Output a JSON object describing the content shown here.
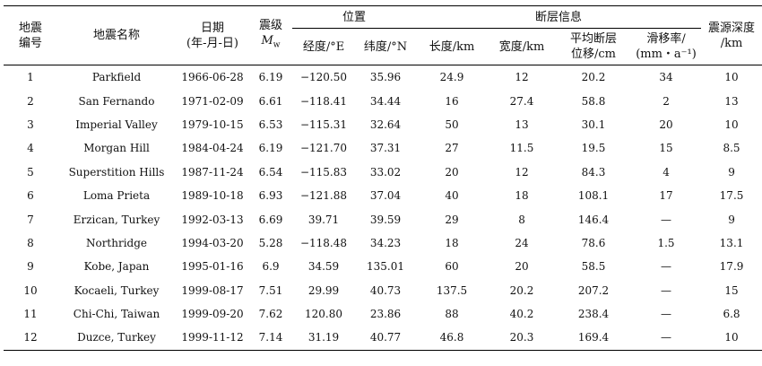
{
  "headers": {
    "no": "地震\n编号",
    "name": "地震名称",
    "date": "日期\n(年-月-日)",
    "mag_line1": "震级",
    "mag_sym": "M",
    "mag_sub": "w",
    "position": "位置",
    "fault_info": "断层信息",
    "depth": "震源深度\n/km",
    "lon": "经度/°E",
    "lat": "纬度/°N",
    "length": "长度/km",
    "width": "宽度/km",
    "disp": "平均断层\n位移/cm",
    "slip_line1": "滑移率/",
    "slip_line2": "(mm・a⁻¹)"
  },
  "rows": [
    {
      "no": "1",
      "name": "Parkfield",
      "date": "1966-06-28",
      "mag": "6.19",
      "lon": "−120.50",
      "lat": "35.96",
      "length": "24.9",
      "width": "12",
      "disp": "20.2",
      "slip": "34",
      "depth": "10"
    },
    {
      "no": "2",
      "name": "San Fernando",
      "date": "1971-02-09",
      "mag": "6.61",
      "lon": "−118.41",
      "lat": "34.44",
      "length": "16",
      "width": "27.4",
      "disp": "58.8",
      "slip": "2",
      "depth": "13"
    },
    {
      "no": "3",
      "name": "Imperial Valley",
      "date": "1979-10-15",
      "mag": "6.53",
      "lon": "−115.31",
      "lat": "32.64",
      "length": "50",
      "width": "13",
      "disp": "30.1",
      "slip": "20",
      "depth": "10"
    },
    {
      "no": "4",
      "name": "Morgan Hill",
      "date": "1984-04-24",
      "mag": "6.19",
      "lon": "−121.70",
      "lat": "37.31",
      "length": "27",
      "width": "11.5",
      "disp": "19.5",
      "slip": "15",
      "depth": "8.5"
    },
    {
      "no": "5",
      "name": "Superstition Hills",
      "date": "1987-11-24",
      "mag": "6.54",
      "lon": "−115.83",
      "lat": "33.02",
      "length": "20",
      "width": "12",
      "disp": "84.3",
      "slip": "4",
      "depth": "9"
    },
    {
      "no": "6",
      "name": "Loma Prieta",
      "date": "1989-10-18",
      "mag": "6.93",
      "lon": "−121.88",
      "lat": "37.04",
      "length": "40",
      "width": "18",
      "disp": "108.1",
      "slip": "17",
      "depth": "17.5"
    },
    {
      "no": "7",
      "name": "Erzican, Turkey",
      "date": "1992-03-13",
      "mag": "6.69",
      "lon": "39.71",
      "lat": "39.59",
      "length": "29",
      "width": "8",
      "disp": "146.4",
      "slip": "—",
      "depth": "9"
    },
    {
      "no": "8",
      "name": "Northridge",
      "date": "1994-03-20",
      "mag": "5.28",
      "lon": "−118.48",
      "lat": "34.23",
      "length": "18",
      "width": "24",
      "disp": "78.6",
      "slip": "1.5",
      "depth": "13.1"
    },
    {
      "no": "9",
      "name": "Kobe, Japan",
      "date": "1995-01-16",
      "mag": "6.9",
      "lon": "34.59",
      "lat": "135.01",
      "length": "60",
      "width": "20",
      "disp": "58.5",
      "slip": "—",
      "depth": "17.9"
    },
    {
      "no": "10",
      "name": "Kocaeli, Turkey",
      "date": "1999-08-17",
      "mag": "7.51",
      "lon": "29.99",
      "lat": "40.73",
      "length": "137.5",
      "width": "20.2",
      "disp": "207.2",
      "slip": "—",
      "depth": "15"
    },
    {
      "no": "11",
      "name": "Chi-Chi, Taiwan",
      "date": "1999-09-20",
      "mag": "7.62",
      "lon": "120.80",
      "lat": "23.86",
      "length": "88",
      "width": "40.2",
      "disp": "238.4",
      "slip": "—",
      "depth": "6.8"
    },
    {
      "no": "12",
      "name": "Duzce, Turkey",
      "date": "1999-11-12",
      "mag": "7.14",
      "lon": "31.19",
      "lat": "40.77",
      "length": "46.8",
      "width": "20.3",
      "disp": "169.4",
      "slip": "—",
      "depth": "10"
    }
  ]
}
